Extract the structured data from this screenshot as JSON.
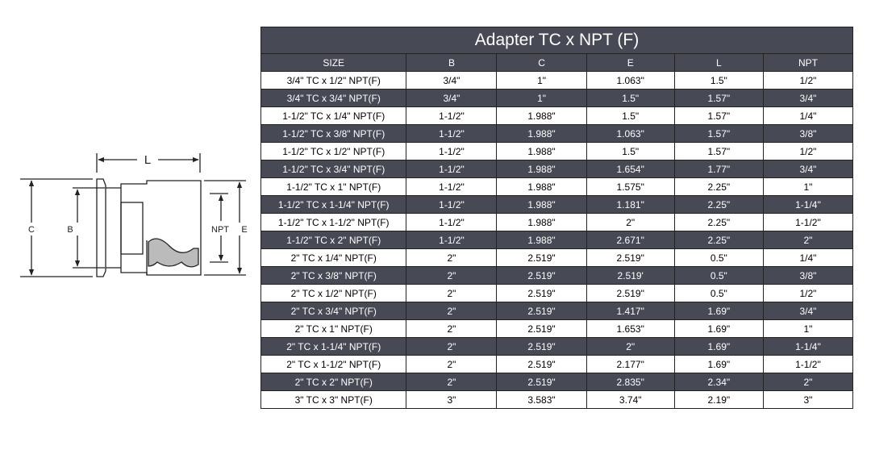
{
  "diagram": {
    "labels": {
      "L": "L",
      "C": "C",
      "B": "B",
      "NPT": "NPT",
      "E": "E"
    }
  },
  "table": {
    "title": "Adapter TC x NPT (F)",
    "headers": [
      "SIZE",
      "B",
      "C",
      "E",
      "L",
      "NPT"
    ],
    "rows": [
      [
        "3/4\" TC x 1/2\" NPT(F)",
        "3/4\"",
        "1\"",
        "1.063\"",
        "1.5\"",
        "1/2\""
      ],
      [
        "3/4\" TC x 3/4\" NPT(F)",
        "3/4\"",
        "1\"",
        "1.5\"",
        "1.57\"",
        "3/4\""
      ],
      [
        "1-1/2\" TC x 1/4\" NPT(F)",
        "1-1/2\"",
        "1.988\"",
        "1.5\"",
        "1.57\"",
        "1/4\""
      ],
      [
        "1-1/2\" TC x 3/8\" NPT(F)",
        "1-1/2\"",
        "1.988\"",
        "1.063\"",
        "1.57\"",
        "3/8\""
      ],
      [
        "1-1/2\" TC x 1/2\" NPT(F)",
        "1-1/2\"",
        "1.988\"",
        "1.5\"",
        "1.57\"",
        "1/2\""
      ],
      [
        "1-1/2\" TC x 3/4\" NPT(F)",
        "1-1/2\"",
        "1.988\"",
        "1.654\"",
        "1.77\"",
        "3/4\""
      ],
      [
        "1-1/2\" TC x 1\" NPT(F)",
        "1-1/2\"",
        "1.988\"",
        "1.575\"",
        "2.25\"",
        "1\""
      ],
      [
        "1-1/2\" TC x 1-1/4\" NPT(F)",
        "1-1/2\"",
        "1.988\"",
        "1.181\"",
        "2.25\"",
        "1-1/4\""
      ],
      [
        "1-1/2\" TC x 1-1/2\" NPT(F)",
        "1-1/2\"",
        "1.988\"",
        "2\"",
        "2.25\"",
        "1-1/2\""
      ],
      [
        "1-1/2\" TC x 2\" NPT(F)",
        "1-1/2\"",
        "1.988\"",
        "2.671\"",
        "2.25\"",
        "2\""
      ],
      [
        "2\" TC x 1/4\" NPT(F)",
        "2\"",
        "2.519\"",
        "2.519\"",
        "0.5\"",
        "1/4\""
      ],
      [
        "2\" TC x 3/8\" NPT(F)",
        "2\"",
        "2.519\"",
        "2.519'",
        "0.5\"",
        "3/8\""
      ],
      [
        "2\" TC x 1/2\" NPT(F)",
        "2\"",
        "2.519\"",
        "2.519\"",
        "0.5\"",
        "1/2\""
      ],
      [
        "2\" TC x 3/4\" NPT(F)",
        "2\"",
        "2.519\"",
        "1.417\"",
        "1.69\"",
        "3/4\""
      ],
      [
        "2\" TC x 1\" NPT(F)",
        "2\"",
        "2.519\"",
        "1.653\"",
        "1.69\"",
        "1\""
      ],
      [
        "2\" TC x 1-1/4\" NPT(F)",
        "2\"",
        "2.519\"",
        "2\"",
        "1.69\"",
        "1-1/4\""
      ],
      [
        "2\" TC x 1-1/2\" NPT(F)",
        "2\"",
        "2.519\"",
        "2.177\"",
        "1.69\"",
        "1-1/2\""
      ],
      [
        "2\" TC x 2\" NPT(F)",
        "2\"",
        "2.519\"",
        "2.835\"",
        "2.34\"",
        "2\""
      ],
      [
        "3\" TC x 3\" NPT(F)",
        "3\"",
        "3.583\"",
        "3.74\"",
        "2.19\"",
        "3\""
      ]
    ]
  },
  "colors": {
    "dark": "#474a54"
  }
}
